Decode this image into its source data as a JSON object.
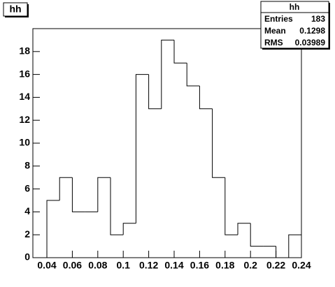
{
  "chart_data": {
    "type": "histogram",
    "title": "hh",
    "bins": [
      0.04,
      0.05,
      0.06,
      0.07,
      0.08,
      0.09,
      0.1,
      0.11,
      0.12,
      0.13,
      0.14,
      0.15,
      0.16,
      0.17,
      0.18,
      0.19,
      0.2,
      0.21,
      0.22,
      0.23,
      0.24
    ],
    "values": [
      5,
      7,
      4,
      4,
      7,
      2,
      3,
      16,
      13,
      19,
      17,
      15,
      13,
      7,
      2,
      3,
      1,
      1,
      0,
      2
    ],
    "color": "#000000",
    "xlim": [
      0.029,
      0.24
    ],
    "xticks": [
      0.04,
      0.06,
      0.08,
      0.1,
      0.12,
      0.14,
      0.16,
      0.18,
      0.2,
      0.22,
      0.24
    ],
    "ylim": [
      0,
      20
    ],
    "yticks": [
      0,
      2,
      4,
      6,
      8,
      10,
      12,
      14,
      16,
      18
    ],
    "stats": {
      "title": "hh",
      "rows": [
        {
          "label": "Entries",
          "value": 183
        },
        {
          "label": "Mean",
          "value": 0.1298
        },
        {
          "label": "RMS",
          "value": 0.03989
        }
      ]
    }
  }
}
